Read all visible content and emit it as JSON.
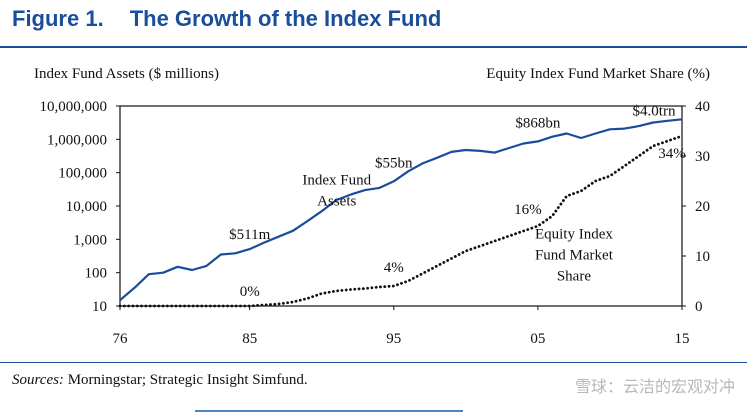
{
  "figure": {
    "number": "Figure 1.",
    "title": "The Growth of the Index Fund"
  },
  "sources": {
    "label": "Sources:",
    "text": "Morningstar; Strategic Insight Simfund."
  },
  "watermark": "雪球：云洁的宏观对冲",
  "colors": {
    "title": "#1a4d9c",
    "assets_line": "#1a4d9c",
    "share_line": "#111111"
  },
  "chart_data": {
    "type": "line",
    "y_left": {
      "label": "Index Fund Assets ($ millions)",
      "scale": "log",
      "ticks": [
        10,
        100,
        1000,
        10000,
        100000,
        1000000,
        10000000
      ],
      "tick_labels": [
        "10",
        "100",
        "1,000",
        "10,000",
        "100,000",
        "1,000,000",
        "10,000,000"
      ]
    },
    "y_right": {
      "label": "Equity Index Fund Market Share (%)",
      "range": [
        0,
        40
      ],
      "ticks": [
        0,
        10,
        20,
        30,
        40
      ],
      "tick_labels": [
        "0",
        "10",
        "20",
        "30",
        "40"
      ]
    },
    "x_axis": {
      "range": [
        1976,
        2015
      ],
      "ticks": [
        1976,
        1985,
        1995,
        2005,
        2015
      ],
      "tick_labels": [
        "76",
        "85",
        "95",
        "05",
        "15"
      ]
    },
    "grid": false,
    "series": [
      {
        "name": "Index Fund Assets",
        "axis": "left",
        "style": "solid",
        "x": [
          1976,
          1977,
          1978,
          1979,
          1980,
          1981,
          1982,
          1983,
          1984,
          1985,
          1986,
          1987,
          1988,
          1989,
          1990,
          1991,
          1992,
          1993,
          1994,
          1995,
          1996,
          1997,
          1998,
          1999,
          2000,
          2001,
          2002,
          2003,
          2004,
          2005,
          2006,
          2007,
          2008,
          2009,
          2010,
          2011,
          2012,
          2013,
          2014,
          2015
        ],
        "values": [
          15,
          35,
          90,
          100,
          150,
          120,
          160,
          350,
          380,
          511,
          800,
          1200,
          1800,
          3500,
          7000,
          15000,
          22000,
          30000,
          35000,
          55000,
          110000,
          190000,
          280000,
          420000,
          480000,
          450000,
          400000,
          550000,
          750000,
          868000,
          1200000,
          1500000,
          1100000,
          1500000,
          2000000,
          2100000,
          2500000,
          3200000,
          3600000,
          4000000
        ]
      },
      {
        "name": "Equity Index Fund Market Share",
        "axis": "right",
        "style": "dotted",
        "x": [
          1976,
          1980,
          1984,
          1985,
          1986,
          1987,
          1988,
          1989,
          1990,
          1991,
          1992,
          1993,
          1994,
          1995,
          1996,
          1997,
          1998,
          1999,
          2000,
          2001,
          2002,
          2003,
          2004,
          2005,
          2006,
          2007,
          2008,
          2009,
          2010,
          2011,
          2012,
          2013,
          2014,
          2015
        ],
        "values": [
          0,
          0,
          0,
          0,
          0.2,
          0.4,
          0.8,
          1.5,
          2.5,
          3,
          3.3,
          3.5,
          3.8,
          4,
          5,
          6.5,
          8,
          9.5,
          11,
          12,
          13,
          14,
          15,
          16,
          18,
          22,
          23,
          25,
          26,
          28,
          30,
          32,
          33,
          34
        ]
      }
    ],
    "annotations": [
      {
        "text": "$511m",
        "x": 1985,
        "target": "assets"
      },
      {
        "text": "$55bn",
        "x": 1995,
        "target": "assets"
      },
      {
        "text": "$868bn",
        "x": 2005,
        "target": "assets"
      },
      {
        "text": "$4.0trn",
        "x": 2015,
        "target": "assets"
      },
      {
        "text": "0%",
        "x": 1985,
        "target": "share"
      },
      {
        "text": "4%",
        "x": 1995,
        "target": "share"
      },
      {
        "text": "16%",
        "x": 2005,
        "target": "share"
      },
      {
        "text": "34%",
        "x": 2015,
        "target": "share"
      }
    ],
    "series_labels": [
      {
        "lines": [
          "Index Fund",
          "Assets"
        ]
      },
      {
        "lines": [
          "Equity Index",
          "Fund Market",
          "Share"
        ]
      }
    ]
  }
}
